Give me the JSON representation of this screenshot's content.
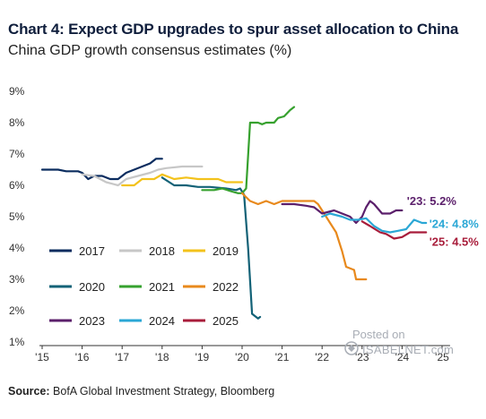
{
  "title": "Chart 4: Expect GDP upgrades to spur asset allocation to China",
  "subtitle": "China GDP growth consensus estimates (%)",
  "source_label": "Source:",
  "source_text": "BofA Global Investment Strategy, Bloomberg",
  "watermark": {
    "line1": "Posted on",
    "line2": "ISABELNET.com"
  },
  "colors": {
    "2017": "#0b2c5f",
    "2018": "#c7c7c7",
    "2019": "#f3c21b",
    "2020": "#136277",
    "2021": "#36a12e",
    "2022": "#e8891c",
    "2023": "#5b1f6b",
    "2024": "#2aa7d5",
    "2025": "#a81c3a"
  },
  "chart_data": {
    "type": "line",
    "x_unit": "year",
    "x_ticks": [
      "'15",
      "'16",
      "'17",
      "'18",
      "'19",
      "'20",
      "'21",
      "'22",
      "'23",
      "'24",
      "'25"
    ],
    "y_ticks": [
      "1%",
      "2%",
      "3%",
      "4%",
      "5%",
      "6%",
      "7%",
      "8%",
      "9%"
    ],
    "xlim": [
      2015,
      2025.2
    ],
    "ylim": [
      1,
      9
    ],
    "grid": false,
    "legend_position": "center-left",
    "series": [
      {
        "name": "2017",
        "color": "#0b2c5f",
        "points": [
          [
            2015.0,
            6.5
          ],
          [
            2015.4,
            6.5
          ],
          [
            2015.6,
            6.45
          ],
          [
            2015.9,
            6.45
          ],
          [
            2016.0,
            6.4
          ],
          [
            2016.15,
            6.2
          ],
          [
            2016.3,
            6.3
          ],
          [
            2016.5,
            6.3
          ],
          [
            2016.7,
            6.2
          ],
          [
            2016.9,
            6.2
          ],
          [
            2017.1,
            6.4
          ],
          [
            2017.3,
            6.5
          ],
          [
            2017.5,
            6.6
          ],
          [
            2017.7,
            6.7
          ],
          [
            2017.85,
            6.85
          ],
          [
            2018.0,
            6.85
          ]
        ]
      },
      {
        "name": "2018",
        "color": "#c7c7c7",
        "points": [
          [
            2016.0,
            6.35
          ],
          [
            2016.3,
            6.3
          ],
          [
            2016.6,
            6.1
          ],
          [
            2016.9,
            6.0
          ],
          [
            2017.1,
            6.2
          ],
          [
            2017.4,
            6.3
          ],
          [
            2017.7,
            6.4
          ],
          [
            2017.9,
            6.5
          ],
          [
            2018.1,
            6.55
          ],
          [
            2018.5,
            6.6
          ],
          [
            2018.9,
            6.6
          ],
          [
            2019.0,
            6.6
          ]
        ]
      },
      {
        "name": "2019",
        "color": "#f3c21b",
        "points": [
          [
            2017.0,
            6.0
          ],
          [
            2017.3,
            6.0
          ],
          [
            2017.5,
            6.2
          ],
          [
            2017.8,
            6.2
          ],
          [
            2018.0,
            6.35
          ],
          [
            2018.3,
            6.2
          ],
          [
            2018.6,
            6.25
          ],
          [
            2018.9,
            6.2
          ],
          [
            2019.1,
            6.2
          ],
          [
            2019.4,
            6.2
          ],
          [
            2019.6,
            6.1
          ],
          [
            2019.85,
            6.1
          ],
          [
            2020.0,
            6.1
          ]
        ]
      },
      {
        "name": "2020",
        "color": "#136277",
        "points": [
          [
            2018.0,
            6.25
          ],
          [
            2018.3,
            6.0
          ],
          [
            2018.6,
            6.0
          ],
          [
            2018.9,
            5.95
          ],
          [
            2019.2,
            5.95
          ],
          [
            2019.6,
            5.9
          ],
          [
            2019.85,
            5.85
          ],
          [
            2019.95,
            5.9
          ],
          [
            2020.05,
            5.7
          ],
          [
            2020.15,
            4.0
          ],
          [
            2020.25,
            1.9
          ],
          [
            2020.4,
            1.75
          ],
          [
            2020.45,
            1.8
          ]
        ]
      },
      {
        "name": "2021",
        "color": "#36a12e",
        "points": [
          [
            2019.0,
            5.85
          ],
          [
            2019.3,
            5.85
          ],
          [
            2019.5,
            5.9
          ],
          [
            2019.75,
            5.8
          ],
          [
            2019.9,
            5.75
          ],
          [
            2020.0,
            5.75
          ],
          [
            2020.1,
            5.9
          ],
          [
            2020.2,
            8.0
          ],
          [
            2020.4,
            8.0
          ],
          [
            2020.5,
            7.95
          ],
          [
            2020.6,
            8.0
          ],
          [
            2020.8,
            8.0
          ],
          [
            2020.9,
            8.15
          ],
          [
            2021.05,
            8.2
          ],
          [
            2021.2,
            8.4
          ],
          [
            2021.3,
            8.5
          ]
        ]
      },
      {
        "name": "2022",
        "color": "#e8891c",
        "points": [
          [
            2020.0,
            5.75
          ],
          [
            2020.2,
            5.5
          ],
          [
            2020.4,
            5.4
          ],
          [
            2020.6,
            5.5
          ],
          [
            2020.8,
            5.4
          ],
          [
            2021.0,
            5.5
          ],
          [
            2021.3,
            5.5
          ],
          [
            2021.6,
            5.5
          ],
          [
            2021.8,
            5.5
          ],
          [
            2021.9,
            5.4
          ],
          [
            2022.0,
            5.2
          ],
          [
            2022.1,
            5.0
          ],
          [
            2022.2,
            4.8
          ],
          [
            2022.35,
            4.5
          ],
          [
            2022.5,
            3.9
          ],
          [
            2022.6,
            3.4
          ],
          [
            2022.8,
            3.3
          ],
          [
            2022.85,
            3.0
          ],
          [
            2023.0,
            3.0
          ],
          [
            2023.1,
            3.0
          ]
        ]
      },
      {
        "name": "2023",
        "color": "#5b1f6b",
        "points": [
          [
            2021.0,
            5.4
          ],
          [
            2021.3,
            5.4
          ],
          [
            2021.6,
            5.35
          ],
          [
            2021.8,
            5.3
          ],
          [
            2022.0,
            5.1
          ],
          [
            2022.3,
            5.2
          ],
          [
            2022.5,
            5.1
          ],
          [
            2022.7,
            5.0
          ],
          [
            2022.85,
            4.8
          ],
          [
            2023.0,
            5.0
          ],
          [
            2023.1,
            5.3
          ],
          [
            2023.2,
            5.5
          ],
          [
            2023.3,
            5.4
          ],
          [
            2023.5,
            5.1
          ],
          [
            2023.7,
            5.1
          ],
          [
            2023.85,
            5.2
          ],
          [
            2024.0,
            5.2
          ]
        ]
      },
      {
        "name": "2024",
        "color": "#2aa7d5",
        "points": [
          [
            2022.0,
            5.0
          ],
          [
            2022.2,
            5.1
          ],
          [
            2022.5,
            5.0
          ],
          [
            2022.7,
            4.9
          ],
          [
            2022.9,
            4.9
          ],
          [
            2023.1,
            4.95
          ],
          [
            2023.3,
            4.7
          ],
          [
            2023.5,
            4.55
          ],
          [
            2023.7,
            4.5
          ],
          [
            2023.9,
            4.55
          ],
          [
            2024.1,
            4.6
          ],
          [
            2024.3,
            4.9
          ],
          [
            2024.5,
            4.8
          ],
          [
            2024.6,
            4.8
          ]
        ]
      },
      {
        "name": "2025",
        "color": "#a81c3a",
        "points": [
          [
            2023.0,
            4.85
          ],
          [
            2023.2,
            4.7
          ],
          [
            2023.45,
            4.5
          ],
          [
            2023.6,
            4.45
          ],
          [
            2023.8,
            4.3
          ],
          [
            2024.0,
            4.35
          ],
          [
            2024.2,
            4.5
          ],
          [
            2024.4,
            4.5
          ],
          [
            2024.6,
            4.5
          ]
        ]
      }
    ],
    "annotations": [
      {
        "series": "2023",
        "text": "'23: 5.2%"
      },
      {
        "series": "2024",
        "text": "'24: 4.8%"
      },
      {
        "series": "2025",
        "text": "'25: 4.5%"
      }
    ]
  }
}
